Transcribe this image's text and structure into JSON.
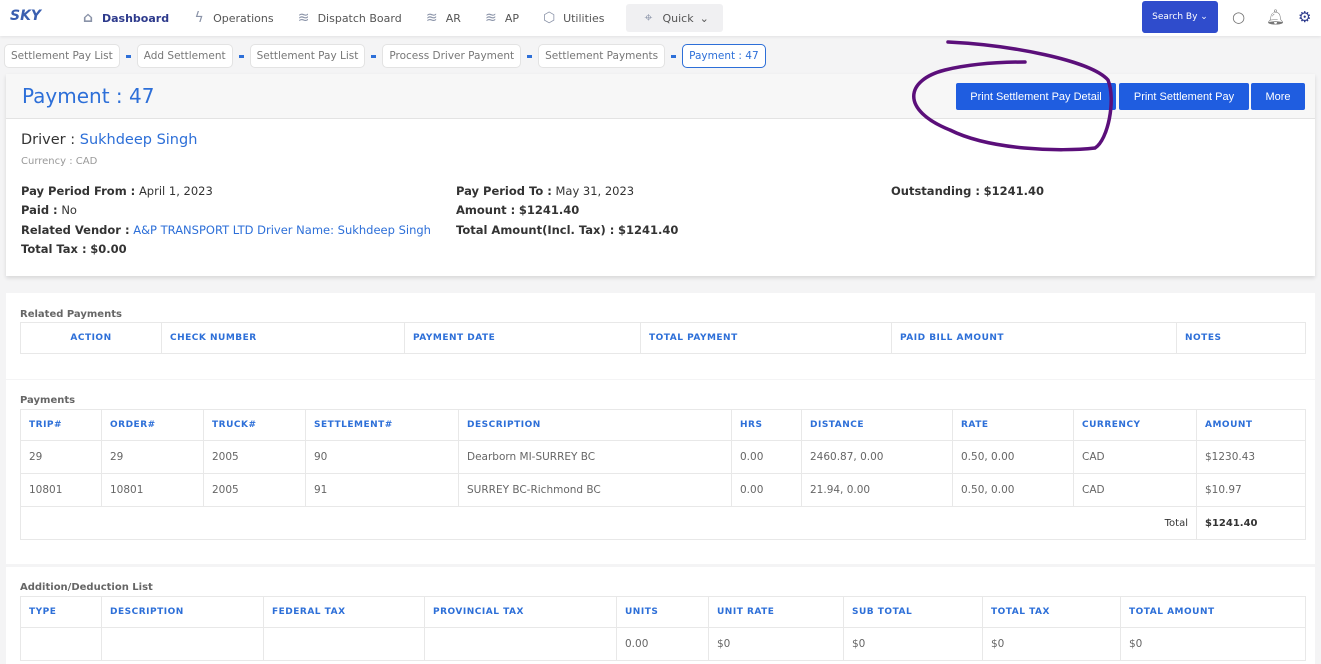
{
  "logo": "SKY",
  "nav": [
    {
      "label": "Dashboard",
      "icon": "home-icon"
    },
    {
      "label": "Operations",
      "icon": "bolt-icon"
    },
    {
      "label": "Dispatch Board",
      "icon": "layers-icon"
    },
    {
      "label": "AR",
      "icon": "layers-icon"
    },
    {
      "label": "AP",
      "icon": "layers-icon"
    },
    {
      "label": "Utilities",
      "icon": "box-icon"
    }
  ],
  "quick": "Quick",
  "search_by": "Search By",
  "breadcrumbs": [
    "Settlement Pay List",
    "Add Settlement",
    "Settlement Pay List",
    "Process Driver Payment",
    "Settlement Payments",
    "Payment : 47"
  ],
  "title": "Payment : 47",
  "buttons": {
    "print_detail": "Print Settlement Pay Detail",
    "print": "Print Settlement Pay",
    "more": "More"
  },
  "driver": {
    "label": "Driver :",
    "name": "Sukhdeep Singh",
    "currency": "Currency : CAD"
  },
  "details": {
    "pay_from_label": "Pay Period From :",
    "pay_from": "April 1, 2023",
    "paid_label": "Paid :",
    "paid": "No",
    "vendor_label": "Related Vendor :",
    "vendor": "A&P TRANSPORT LTD Driver Name: Sukhdeep Singh",
    "tax_label": "Total Tax :",
    "tax": "$0.00",
    "pay_to_label": "Pay Period To :",
    "pay_to": "May 31, 2023",
    "amount_label": "Amount :",
    "amount": "$1241.40",
    "total_label": "Total Amount(Incl. Tax) :",
    "total": "$1241.40",
    "outstanding_label": "Outstanding :",
    "outstanding": "$1241.40"
  },
  "related": {
    "title": "Related Payments",
    "headers": [
      "ACTION",
      "CHECK NUMBER",
      "PAYMENT DATE",
      "TOTAL PAYMENT",
      "PAID BILL AMOUNT",
      "NOTES"
    ]
  },
  "payments": {
    "title": "Payments",
    "headers": [
      "TRIP#",
      "ORDER#",
      "TRUCK#",
      "SETTLEMENT#",
      "DESCRIPTION",
      "HRS",
      "DISTANCE",
      "RATE",
      "CURRENCY",
      "AMOUNT"
    ],
    "rows": [
      [
        "29",
        "29",
        "2005",
        "90",
        "Dearborn MI-SURREY BC",
        "0.00",
        "2460.87, 0.00",
        "0.50, 0.00",
        "CAD",
        "$1230.43"
      ],
      [
        "10801",
        "10801",
        "2005",
        "91",
        "SURREY BC-Richmond BC",
        "0.00",
        "21.94, 0.00",
        "0.50, 0.00",
        "CAD",
        "$10.97"
      ]
    ],
    "total_label": "Total",
    "total": "$1241.40"
  },
  "additions": {
    "title": "Addition/Deduction List",
    "headers": [
      "TYPE",
      "DESCRIPTION",
      "FEDERAL TAX",
      "PROVINCIAL TAX",
      "UNITS",
      "UNIT RATE",
      "SUB TOTAL",
      "TOTAL TAX",
      "TOTAL AMOUNT"
    ],
    "rows": [
      [
        "",
        "",
        "",
        "",
        "0.00",
        "$0",
        "$0",
        "$0",
        "$0"
      ]
    ]
  },
  "annotation_color": "#5b0f7a"
}
